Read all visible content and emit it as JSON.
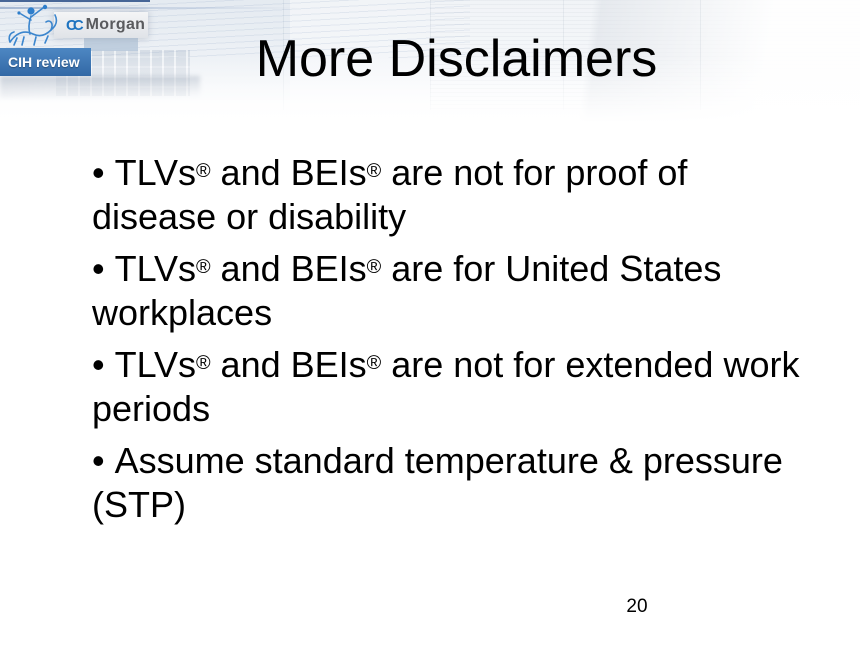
{
  "slide": {
    "title": "More Disclaimers",
    "bullet_char": "•",
    "bullets": [
      "TLVs® and BEIs® are not for proof of disease or disability",
      "TLVs® and BEIs® are for United States workplaces",
      "TLVs® and BEIs® are not for extended work periods",
      "Assume standard temperature & pressure (STP)"
    ],
    "page_number": "20"
  },
  "header": {
    "badge_label": "CIH review",
    "logo": {
      "mark": "CC",
      "name": "Morgan"
    },
    "icons": {
      "logo_illustration": "blue-line-art-rider-with-lions-emblem"
    },
    "colors": {
      "badge_blue": "#3d74ae",
      "logo_blue": "#1f74c0",
      "logo_gray": "#5a5b5e",
      "navy_top_line": "#2c4f87",
      "text": "#000000"
    }
  }
}
